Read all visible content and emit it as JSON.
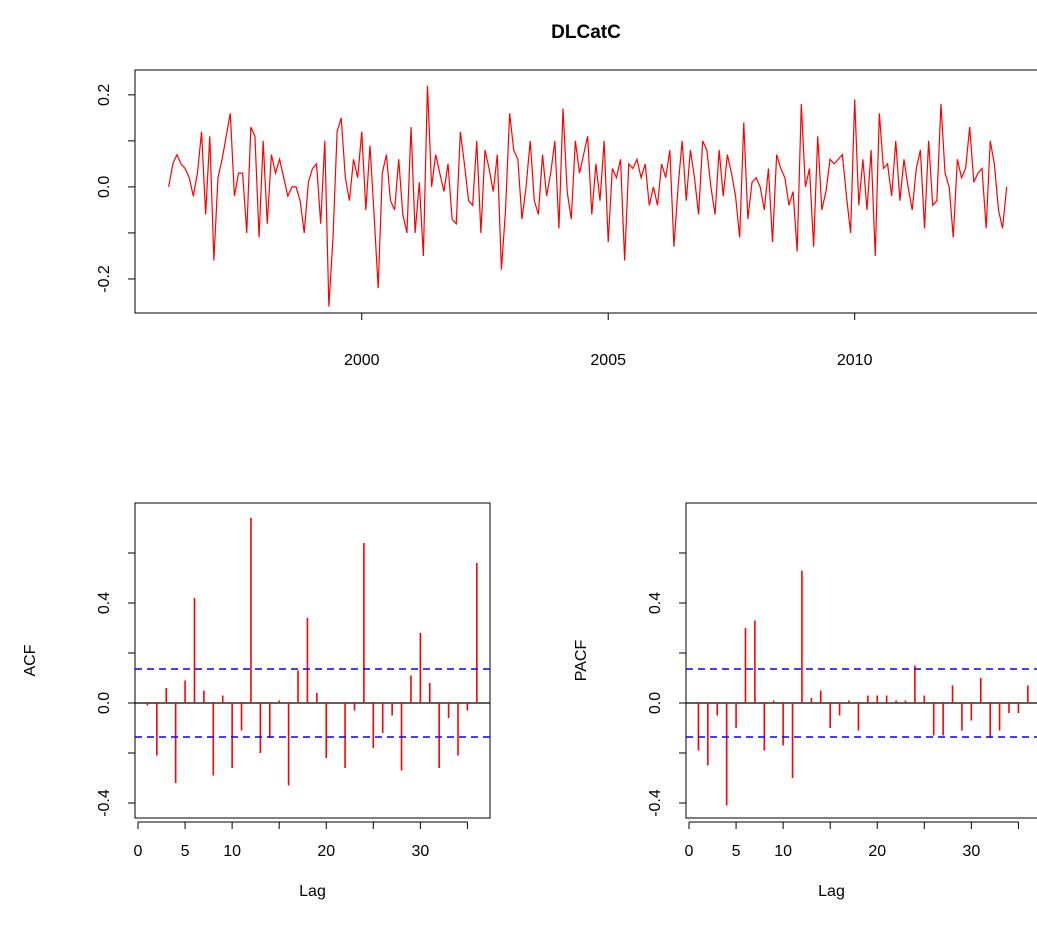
{
  "title": "DLCatC",
  "chart_data": [
    {
      "type": "line",
      "color": "#ff0000",
      "x": [
        1996.083,
        1996.167,
        1996.25,
        1996.333,
        1996.417,
        1996.5,
        1996.583,
        1996.667,
        1996.75,
        1996.833,
        1996.917,
        1997,
        1997.083,
        1997.167,
        1997.25,
        1997.333,
        1997.417,
        1997.5,
        1997.583,
        1997.667,
        1997.75,
        1997.833,
        1997.917,
        1998,
        1998.083,
        1998.167,
        1998.25,
        1998.333,
        1998.417,
        1998.5,
        1998.583,
        1998.667,
        1998.75,
        1998.833,
        1998.917,
        1999,
        1999.083,
        1999.167,
        1999.25,
        1999.333,
        1999.417,
        1999.5,
        1999.583,
        1999.667,
        1999.75,
        1999.833,
        1999.917,
        2000,
        2000.083,
        2000.167,
        2000.25,
        2000.333,
        2000.417,
        2000.5,
        2000.583,
        2000.667,
        2000.75,
        2000.833,
        2000.917,
        2001,
        2001.083,
        2001.167,
        2001.25,
        2001.333,
        2001.417,
        2001.5,
        2001.583,
        2001.667,
        2001.75,
        2001.833,
        2001.917,
        2002,
        2002.083,
        2002.167,
        2002.25,
        2002.333,
        2002.417,
        2002.5,
        2002.583,
        2002.667,
        2002.75,
        2002.833,
        2002.917,
        2003,
        2003.083,
        2003.167,
        2003.25,
        2003.333,
        2003.417,
        2003.5,
        2003.583,
        2003.667,
        2003.75,
        2003.833,
        2003.917,
        2004,
        2004.083,
        2004.167,
        2004.25,
        2004.333,
        2004.417,
        2004.5,
        2004.583,
        2004.667,
        2004.75,
        2004.833,
        2004.917,
        2005,
        2005.083,
        2005.167,
        2005.25,
        2005.333,
        2005.417,
        2005.5,
        2005.583,
        2005.667,
        2005.75,
        2005.833,
        2005.917,
        2006,
        2006.083,
        2006.167,
        2006.25,
        2006.333,
        2006.417,
        2006.5,
        2006.583,
        2006.667,
        2006.75,
        2006.833,
        2006.917,
        2007,
        2007.083,
        2007.167,
        2007.25,
        2007.333,
        2007.417,
        2007.5,
        2007.583,
        2007.667,
        2007.75,
        2007.833,
        2007.917,
        2008,
        2008.083,
        2008.167,
        2008.25,
        2008.333,
        2008.417,
        2008.5,
        2008.583,
        2008.667,
        2008.75,
        2008.833,
        2008.917,
        2009,
        2009.083,
        2009.167,
        2009.25,
        2009.333,
        2009.417,
        2009.5,
        2009.583,
        2009.667,
        2009.75,
        2009.833,
        2009.917,
        2010,
        2010.083,
        2010.167,
        2010.25,
        2010.333,
        2010.417,
        2010.5,
        2010.583,
        2010.667,
        2010.75,
        2010.833,
        2010.917,
        2011,
        2011.083,
        2011.167,
        2011.25,
        2011.333,
        2011.417,
        2011.5,
        2011.583,
        2011.667,
        2011.75,
        2011.833,
        2011.917,
        2012,
        2012.083,
        2012.167,
        2012.25,
        2012.333,
        2012.417,
        2012.5,
        2012.583,
        2012.667,
        2012.75,
        2012.833,
        2012.917,
        2013,
        2013.083
      ],
      "values": [
        0.0,
        0.05,
        0.07,
        0.05,
        0.04,
        0.02,
        -0.02,
        0.03,
        0.12,
        -0.06,
        0.11,
        -0.16,
        0.02,
        0.06,
        0.11,
        0.16,
        -0.02,
        0.03,
        0.03,
        -0.1,
        0.13,
        0.11,
        -0.11,
        0.1,
        -0.08,
        0.07,
        0.03,
        0.06,
        0.02,
        -0.02,
        0.0,
        0.0,
        -0.03,
        -0.1,
        0.01,
        0.04,
        0.05,
        -0.08,
        0.1,
        -0.26,
        -0.11,
        0.12,
        0.15,
        0.02,
        -0.03,
        0.06,
        0.02,
        0.12,
        -0.05,
        0.09,
        -0.06,
        -0.22,
        0.03,
        0.07,
        -0.03,
        -0.05,
        0.06,
        -0.06,
        -0.1,
        0.13,
        -0.1,
        0.01,
        -0.15,
        0.22,
        0.0,
        0.07,
        0.03,
        -0.01,
        0.05,
        -0.07,
        -0.08,
        0.12,
        0.05,
        -0.03,
        -0.04,
        0.1,
        -0.1,
        0.08,
        0.04,
        -0.01,
        0.07,
        -0.18,
        -0.05,
        0.16,
        0.08,
        0.06,
        -0.07,
        0.0,
        0.1,
        -0.03,
        -0.06,
        0.07,
        -0.02,
        0.03,
        0.1,
        -0.09,
        0.17,
        -0.01,
        -0.07,
        0.1,
        0.03,
        0.07,
        0.11,
        -0.06,
        0.05,
        -0.03,
        0.1,
        -0.12,
        0.04,
        0.02,
        0.06,
        -0.16,
        0.05,
        0.04,
        0.06,
        0.02,
        0.05,
        -0.04,
        0.0,
        -0.04,
        0.05,
        0.02,
        0.08,
        -0.13,
        0.0,
        0.1,
        -0.03,
        0.08,
        0.02,
        -0.06,
        0.1,
        0.08,
        0.0,
        -0.06,
        0.08,
        -0.02,
        0.07,
        0.03,
        -0.02,
        -0.11,
        0.14,
        -0.07,
        0.01,
        0.02,
        0.0,
        -0.05,
        0.04,
        -0.12,
        0.07,
        0.04,
        0.02,
        -0.04,
        -0.01,
        -0.14,
        0.18,
        0.0,
        0.04,
        -0.13,
        0.11,
        -0.05,
        -0.01,
        0.06,
        0.05,
        0.06,
        0.07,
        -0.02,
        -0.1,
        0.19,
        -0.04,
        0.06,
        -0.05,
        0.08,
        -0.15,
        0.16,
        0.04,
        0.05,
        -0.02,
        0.1,
        -0.03,
        0.06,
        0.0,
        -0.05,
        0.04,
        0.08,
        -0.09,
        0.1,
        -0.04,
        -0.03,
        0.18,
        0.03,
        0.0,
        -0.11,
        0.06,
        0.02,
        0.04,
        0.13,
        0.01,
        0.03,
        0.04,
        -0.09,
        0.1,
        0.05,
        -0.05,
        -0.09,
        0.0
      ],
      "xlim": [
        1995.4,
        2013.8
      ],
      "xticks": [
        2000,
        2005,
        2010
      ],
      "ylim": [
        -0.274,
        0.254
      ],
      "yticks": [
        -0.2,
        {
          "value": -0.1,
          "label": null
        },
        {
          "value": 0,
          "label": "0.0"
        },
        {
          "value": 0.1,
          "label": null
        },
        0.2
      ]
    },
    {
      "type": "bar",
      "color": "#ff0000",
      "xlabel": "Lag",
      "ylabel": "ACF",
      "x": [
        1,
        2,
        3,
        4,
        5,
        6,
        7,
        8,
        9,
        10,
        11,
        12,
        13,
        14,
        15,
        16,
        17,
        18,
        19,
        20,
        21,
        22,
        23,
        24,
        25,
        26,
        27,
        28,
        29,
        30,
        31,
        32,
        33,
        34,
        35,
        36
      ],
      "values": [
        -0.01,
        -0.21,
        0.06,
        -0.32,
        0.09,
        0.42,
        0.05,
        -0.29,
        0.03,
        -0.26,
        -0.11,
        0.74,
        -0.2,
        -0.14,
        0.01,
        -0.33,
        0.13,
        0.34,
        0.04,
        -0.22,
        0.0,
        -0.26,
        -0.03,
        0.64,
        -0.18,
        -0.12,
        -0.05,
        -0.27,
        0.11,
        0.28,
        0.08,
        -0.26,
        -0.06,
        -0.21,
        -0.03,
        0.56
      ],
      "ci_bounds": [
        -0.136,
        0.136
      ],
      "ci_color": "#0000ff",
      "xlim": [
        -0.32,
        37.4
      ],
      "xticks": [
        0,
        5,
        10,
        {
          "value": 15,
          "label": null
        },
        20,
        {
          "value": 25,
          "label": null
        },
        30,
        {
          "value": 35,
          "label": null
        }
      ],
      "ylim": [
        -0.46,
        0.8
      ],
      "yticks": [
        -0.4,
        {
          "value": -0.2,
          "label": null
        },
        {
          "value": 0,
          "label": "0.0"
        },
        {
          "value": 0.2,
          "label": null
        },
        0.4,
        {
          "value": 0.6,
          "label": null
        }
      ]
    },
    {
      "type": "bar",
      "color": "#ff0000",
      "xlabel": "Lag",
      "ylabel": "PACF",
      "x": [
        1,
        2,
        3,
        4,
        5,
        6,
        7,
        8,
        9,
        10,
        11,
        12,
        13,
        14,
        15,
        16,
        17,
        18,
        19,
        20,
        21,
        22,
        23,
        24,
        25,
        26,
        27,
        28,
        29,
        30,
        31,
        32,
        33,
        34,
        35,
        36
      ],
      "values": [
        -0.19,
        -0.25,
        -0.05,
        -0.41,
        -0.1,
        0.3,
        0.33,
        -0.19,
        0.01,
        -0.17,
        -0.3,
        0.53,
        0.02,
        0.05,
        -0.1,
        -0.05,
        0.01,
        -0.11,
        0.03,
        0.03,
        0.03,
        0.01,
        0.01,
        0.15,
        0.03,
        -0.13,
        -0.13,
        0.07,
        -0.11,
        -0.07,
        0.1,
        -0.14,
        -0.11,
        -0.04,
        -0.04,
        0.07
      ],
      "ci_bounds": [
        -0.136,
        0.136
      ],
      "ci_color": "#0000ff",
      "xlim": [
        -0.32,
        37.4
      ],
      "xticks": [
        0,
        5,
        10,
        {
          "value": 15,
          "label": null
        },
        20,
        {
          "value": 25,
          "label": null
        },
        30,
        {
          "value": 35,
          "label": null
        }
      ],
      "ylim": [
        -0.46,
        0.8
      ],
      "yticks": [
        -0.4,
        {
          "value": -0.2,
          "label": null
        },
        {
          "value": 0,
          "label": "0.0"
        },
        {
          "value": 0.2,
          "label": null
        },
        0.4,
        {
          "value": 0.6,
          "label": null
        }
      ]
    }
  ]
}
